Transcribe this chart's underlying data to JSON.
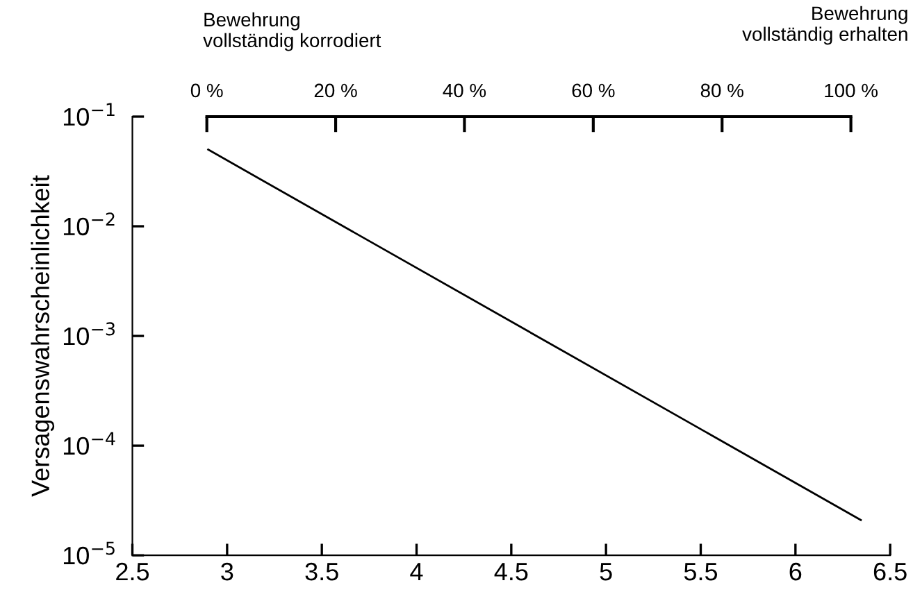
{
  "chart_data": {
    "type": "line",
    "ylabel": "Versagenswahrscheinlichkeit",
    "x": [
      2.9,
      6.345
    ],
    "series": [
      {
        "color": "#000000",
        "values": [
          0.05,
          2.1e-05
        ]
      }
    ],
    "xlim": [
      2.5,
      6.5
    ],
    "xticks": [
      2.5,
      3,
      3.5,
      4,
      4.5,
      5,
      5.5,
      6,
      6.5
    ],
    "log": "y",
    "ylim": [
      1e-05,
      0.1
    ],
    "yticks": [
      {
        "value": 1e-05,
        "label": "10$^{−5}$"
      },
      {
        "value": 0.0001,
        "label": "10$^{−4}$"
      },
      {
        "value": 0.001,
        "label": "10$^{−3}$"
      },
      {
        "value": 0.01,
        "label": "10$^{−2}$"
      },
      {
        "value": 0.1,
        "label": "10$^{−1}$"
      }
    ],
    "x2lim": [
      -11.56,
      106.1
    ],
    "x2ticks": [
      {
        "value": 0,
        "label": "0 %"
      },
      {
        "value": 20,
        "label": "20 %"
      },
      {
        "value": 40,
        "label": "40 %"
      },
      {
        "value": 60,
        "label": "60 %"
      },
      {
        "value": 80,
        "label": "80 %"
      },
      {
        "value": 100,
        "label": "100 %"
      }
    ],
    "annotations": [
      "Bewehrung\nvollständig korrodiert",
      "Bewehrung\nvollständig erhalten"
    ],
    "grid": false,
    "legend": false,
    "marker": "none",
    "line_style": "solid"
  }
}
